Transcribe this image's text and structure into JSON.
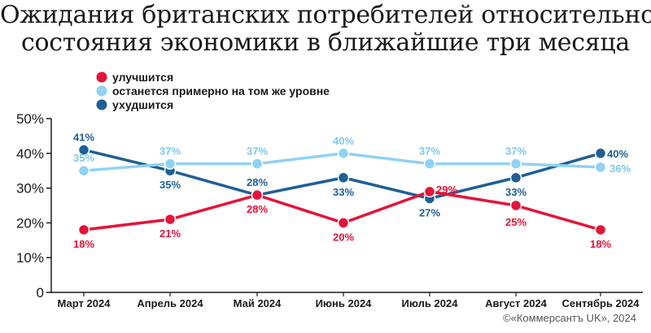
{
  "title": {
    "line1": "Ожидания британских потребителей относительно",
    "line2": "состояния экономики в ближайшие три месяца"
  },
  "credit": "©«Коммерсантъ UK», 2024",
  "chart_data": {
    "type": "line",
    "categories": [
      "Март 2024",
      "Апрель 2024",
      "Май 2024",
      "Июнь 2024",
      "Июль 2024",
      "Август 2024",
      "Сентябрь 2024"
    ],
    "ylim": [
      0,
      50
    ],
    "yticks": [
      0,
      10,
      20,
      30,
      40,
      50
    ],
    "ytick_labels": [
      "0",
      "10%",
      "20%",
      "30%",
      "40%",
      "50%"
    ],
    "grid": false,
    "legend_position": "top-left",
    "series": [
      {
        "name": "улучшится",
        "color": "#e3143a",
        "values": [
          18,
          21,
          28,
          20,
          29,
          25,
          18
        ],
        "labels": [
          "18%",
          "21%",
          "28%",
          "20%",
          "29%",
          "25%",
          "18%"
        ]
      },
      {
        "name": "останется примерно на том же уровне",
        "color": "#8fd2f2",
        "values": [
          35,
          37,
          37,
          40,
          37,
          37,
          36
        ],
        "labels": [
          "35%",
          "37%",
          "37%",
          "40%",
          "37%",
          "37%",
          "36%"
        ]
      },
      {
        "name": "ухудшится",
        "color": "#1f5f96",
        "values": [
          41,
          35,
          28,
          33,
          27,
          33,
          40
        ],
        "labels": [
          "41%",
          "35%",
          "28%",
          "33%",
          "27%",
          "33%",
          "40%"
        ]
      }
    ]
  }
}
